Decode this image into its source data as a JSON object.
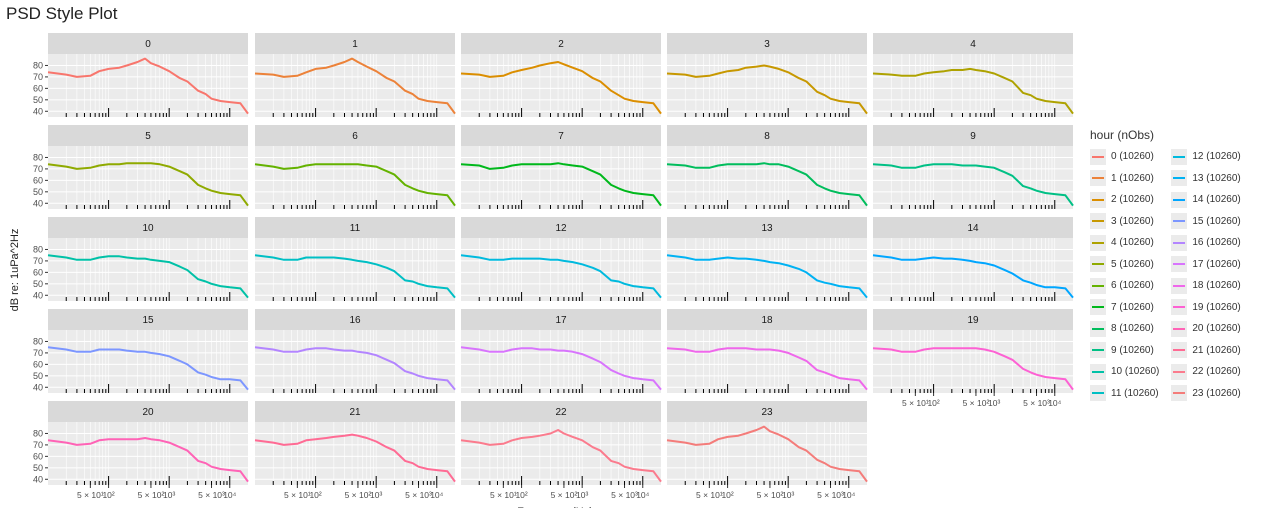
{
  "title": "PSD Style Plot",
  "chart_data": {
    "type": "line",
    "title": "PSD Style Plot",
    "xlabel": "Frequency (Hz)",
    "ylabel": "dB re: 1uPa^2Hz",
    "x_scale": "log",
    "xlim": [
      10,
      20000
    ],
    "ylim": [
      35,
      90
    ],
    "y_ticks": [
      40,
      50,
      60,
      70,
      80
    ],
    "x_tick_labels": [
      "5 × 10¹",
      "10²",
      "5 × 10²",
      "10³",
      "5 × 10³",
      "10⁴"
    ],
    "facet_by": "hour",
    "panels": [
      "0",
      "1",
      "2",
      "3",
      "4",
      "5",
      "6",
      "7",
      "8",
      "9",
      "10",
      "11",
      "12",
      "13",
      "14",
      "15",
      "16",
      "17",
      "18",
      "19",
      "20",
      "21",
      "22",
      "23"
    ],
    "legend": {
      "title": "hour (nObs)",
      "placement": "right",
      "entries": [
        "0 (10260)",
        "1 (10260)",
        "2 (10260)",
        "3 (10260)",
        "4 (10260)",
        "5 (10260)",
        "6 (10260)",
        "7 (10260)",
        "8 (10260)",
        "9 (10260)",
        "10 (10260)",
        "11 (10260)",
        "12 (10260)",
        "13 (10260)",
        "14 (10260)",
        "15 (10260)",
        "16 (10260)",
        "17 (10260)",
        "18 (10260)",
        "19 (10260)",
        "20 (10260)",
        "21 (10260)",
        "22 (10260)",
        "23 (10260)"
      ]
    },
    "colors": [
      "#F8766D",
      "#EC8239",
      "#DB8E00",
      "#C79800",
      "#AEA200",
      "#8FAA00",
      "#64B200",
      "#00B81B",
      "#00BD5C",
      "#00C085",
      "#00C1A7",
      "#00BFC4",
      "#00BADE",
      "#00B2F3",
      "#00A6FF",
      "#7C96FF",
      "#B385FF",
      "#D874FD",
      "#EF67EB",
      "#FD61D3",
      "#FF63B6",
      "#FF6B94",
      "#FB7B8D",
      "#F47C7A"
    ],
    "freq": [
      10,
      20,
      30,
      50,
      70,
      100,
      150,
      200,
      300,
      400,
      500,
      700,
      1000,
      1500,
      2000,
      3000,
      4000,
      5000,
      7000,
      10000,
      15000,
      20000
    ],
    "series": [
      {
        "name": "0",
        "values": [
          74,
          72,
          70,
          71,
          75,
          77,
          78,
          80,
          83,
          86,
          82,
          79,
          75,
          69,
          66,
          58,
          55,
          51,
          49,
          48,
          47,
          38
        ]
      },
      {
        "name": "1",
        "values": [
          73,
          72,
          70,
          71,
          74,
          77,
          78,
          80,
          83,
          86,
          83,
          79,
          75,
          69,
          66,
          58,
          55,
          51,
          49,
          48,
          47,
          38
        ]
      },
      {
        "name": "2",
        "values": [
          73,
          72,
          70,
          71,
          74,
          76,
          78,
          80,
          82,
          83,
          81,
          78,
          75,
          69,
          66,
          58,
          54,
          51,
          49,
          48,
          47,
          38
        ]
      },
      {
        "name": "3",
        "values": [
          73,
          72,
          70,
          71,
          73,
          75,
          76,
          78,
          79,
          80,
          79,
          77,
          74,
          69,
          66,
          57,
          54,
          51,
          49,
          48,
          47,
          38
        ]
      },
      {
        "name": "4",
        "values": [
          73,
          72,
          71,
          71,
          73,
          74,
          75,
          76,
          76,
          77,
          76,
          75,
          73,
          69,
          66,
          56,
          54,
          51,
          49,
          48,
          47,
          38
        ]
      },
      {
        "name": "5",
        "values": [
          74,
          72,
          70,
          71,
          73,
          74,
          74,
          75,
          75,
          75,
          75,
          74,
          72,
          68,
          65,
          56,
          53,
          51,
          49,
          48,
          47,
          38
        ]
      },
      {
        "name": "6",
        "values": [
          74,
          72,
          70,
          71,
          73,
          74,
          74,
          74,
          74,
          74,
          74,
          73,
          72,
          68,
          65,
          56,
          53,
          51,
          49,
          48,
          47,
          38
        ]
      },
      {
        "name": "7",
        "values": [
          74,
          73,
          70,
          71,
          73,
          74,
          74,
          74,
          74,
          75,
          74,
          73,
          72,
          68,
          65,
          56,
          53,
          51,
          49,
          48,
          47,
          38
        ]
      },
      {
        "name": "8",
        "values": [
          74,
          73,
          71,
          71,
          73,
          74,
          74,
          74,
          74,
          75,
          74,
          74,
          72,
          68,
          65,
          56,
          53,
          51,
          49,
          48,
          47,
          38
        ]
      },
      {
        "name": "9",
        "values": [
          74,
          73,
          71,
          71,
          73,
          74,
          74,
          74,
          73,
          73,
          73,
          72,
          71,
          67,
          64,
          55,
          53,
          51,
          49,
          48,
          47,
          38
        ]
      },
      {
        "name": "10",
        "values": [
          75,
          73,
          71,
          71,
          73,
          74,
          74,
          73,
          72,
          72,
          71,
          70,
          69,
          65,
          62,
          54,
          52,
          50,
          48,
          47,
          46,
          38
        ]
      },
      {
        "name": "11",
        "values": [
          75,
          73,
          71,
          71,
          73,
          73,
          73,
          73,
          72,
          71,
          70,
          69,
          67,
          64,
          61,
          53,
          52,
          50,
          48,
          47,
          46,
          38
        ]
      },
      {
        "name": "12",
        "values": [
          75,
          73,
          71,
          71,
          72,
          72,
          72,
          72,
          71,
          71,
          70,
          69,
          67,
          64,
          61,
          53,
          52,
          50,
          48,
          47,
          46,
          38
        ]
      },
      {
        "name": "13",
        "values": [
          75,
          73,
          71,
          71,
          72,
          73,
          72,
          72,
          71,
          70,
          69,
          68,
          66,
          63,
          60,
          53,
          51,
          50,
          48,
          47,
          46,
          38
        ]
      },
      {
        "name": "14",
        "values": [
          75,
          73,
          71,
          71,
          72,
          73,
          72,
          72,
          71,
          70,
          69,
          68,
          66,
          62,
          59,
          53,
          51,
          49,
          47,
          47,
          46,
          38
        ]
      },
      {
        "name": "15",
        "values": [
          75,
          73,
          71,
          71,
          73,
          73,
          73,
          72,
          71,
          71,
          70,
          69,
          67,
          63,
          60,
          53,
          51,
          49,
          47,
          47,
          46,
          38
        ]
      },
      {
        "name": "16",
        "values": [
          75,
          73,
          71,
          71,
          73,
          74,
          74,
          73,
          72,
          72,
          71,
          70,
          68,
          64,
          61,
          54,
          52,
          50,
          48,
          47,
          46,
          38
        ]
      },
      {
        "name": "17",
        "values": [
          75,
          73,
          71,
          71,
          73,
          74,
          74,
          73,
          73,
          72,
          72,
          71,
          69,
          65,
          62,
          55,
          52,
          50,
          48,
          47,
          46,
          38
        ]
      },
      {
        "name": "18",
        "values": [
          74,
          73,
          71,
          71,
          73,
          74,
          74,
          74,
          73,
          73,
          73,
          72,
          70,
          66,
          63,
          55,
          53,
          51,
          48,
          47,
          46,
          38
        ]
      },
      {
        "name": "19",
        "values": [
          74,
          73,
          71,
          71,
          73,
          74,
          74,
          74,
          74,
          74,
          74,
          73,
          71,
          67,
          64,
          56,
          53,
          51,
          49,
          48,
          47,
          38
        ]
      },
      {
        "name": "20",
        "values": [
          74,
          72,
          70,
          71,
          74,
          75,
          75,
          75,
          75,
          76,
          75,
          74,
          72,
          68,
          65,
          56,
          54,
          51,
          49,
          48,
          47,
          38
        ]
      },
      {
        "name": "21",
        "values": [
          74,
          72,
          70,
          71,
          74,
          75,
          76,
          77,
          78,
          79,
          78,
          76,
          73,
          68,
          65,
          56,
          54,
          51,
          49,
          48,
          47,
          38
        ]
      },
      {
        "name": "22",
        "values": [
          74,
          72,
          70,
          71,
          74,
          76,
          77,
          78,
          80,
          83,
          80,
          77,
          74,
          68,
          65,
          56,
          54,
          51,
          49,
          48,
          47,
          38
        ]
      },
      {
        "name": "23",
        "values": [
          74,
          72,
          70,
          71,
          75,
          77,
          78,
          80,
          83,
          86,
          82,
          79,
          75,
          68,
          65,
          57,
          54,
          51,
          49,
          48,
          47,
          38
        ]
      }
    ],
    "grid": true
  }
}
